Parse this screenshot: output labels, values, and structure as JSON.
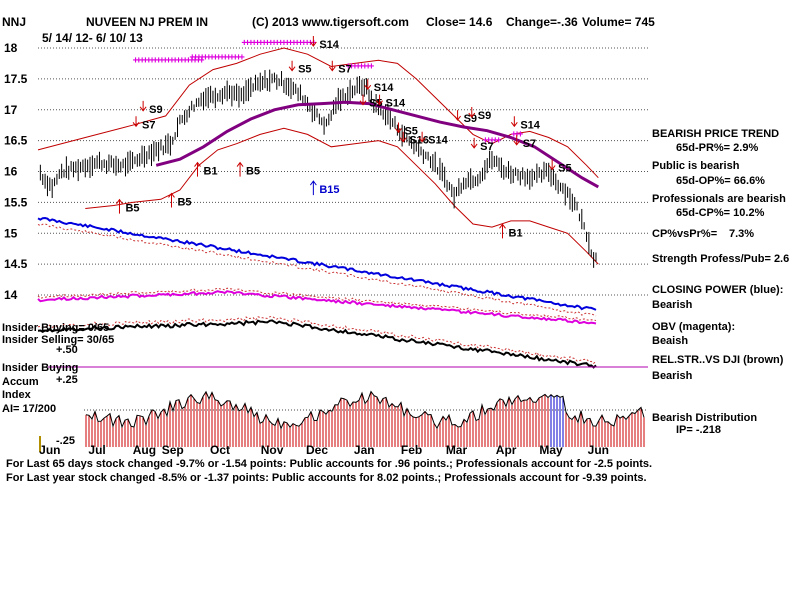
{
  "chart_data": {
    "type": "line",
    "title": "NUVEEN NJ PREM IN",
    "ticker": "NNJ",
    "copyright": "(C) 2013 www.tigersoft.com",
    "close_label": "Close=  14.6",
    "change_label": "Change=-.36",
    "volume_label": "Volume= 745",
    "date_range": "5/ 14/ 12-  6/ 10/ 13",
    "y_axis": {
      "ticks": [
        {
          "value": 18,
          "label": "18"
        },
        {
          "value": 17.5,
          "label": "17.5"
        },
        {
          "value": 17,
          "label": "17"
        },
        {
          "value": 16.5,
          "label": "16.5"
        },
        {
          "value": 16,
          "label": "16"
        },
        {
          "value": 15.5,
          "label": "15.5"
        },
        {
          "value": 15,
          "label": "15"
        },
        {
          "value": 14.5,
          "label": "14.5"
        },
        {
          "value": 14,
          "label": "14"
        }
      ],
      "ylim": [
        13.5,
        18.2
      ]
    },
    "x_axis": {
      "labels": [
        {
          "idx": 0.25,
          "label": "Jun"
        },
        {
          "idx": 1.25,
          "label": "Jul"
        },
        {
          "idx": 2.25,
          "label": "Aug"
        },
        {
          "idx": 2.85,
          "label": "Sep"
        },
        {
          "idx": 3.85,
          "label": "Oct"
        },
        {
          "idx": 4.95,
          "label": "Nov"
        },
        {
          "idx": 5.9,
          "label": "Dec"
        },
        {
          "idx": 6.9,
          "label": "Jan"
        },
        {
          "idx": 7.9,
          "label": "Feb"
        },
        {
          "idx": 8.85,
          "label": "Mar"
        },
        {
          "idx": 9.9,
          "label": "Apr"
        },
        {
          "idx": 10.85,
          "label": "May"
        },
        {
          "idx": 11.85,
          "label": "Jun"
        }
      ],
      "range": [
        0,
        12.9
      ]
    },
    "series": [
      {
        "name": "Price",
        "color": "#000000",
        "values": [
          [
            0,
            16.05
          ],
          [
            0.15,
            15.85
          ],
          [
            0.3,
            15.75
          ],
          [
            0.5,
            16.0
          ],
          [
            0.8,
            16.05
          ],
          [
            1.0,
            16.1
          ],
          [
            1.3,
            16.15
          ],
          [
            1.6,
            16.1
          ],
          [
            1.9,
            16.1
          ],
          [
            2.2,
            16.25
          ],
          [
            2.5,
            16.35
          ],
          [
            2.8,
            16.45
          ],
          [
            3.0,
            16.8
          ],
          [
            3.2,
            17.0
          ],
          [
            3.5,
            17.2
          ],
          [
            3.8,
            17.25
          ],
          [
            4.0,
            17.3
          ],
          [
            4.3,
            17.2
          ],
          [
            4.5,
            17.35
          ],
          [
            4.8,
            17.45
          ],
          [
            5.0,
            17.5
          ],
          [
            5.3,
            17.4
          ],
          [
            5.6,
            17.2
          ],
          [
            5.9,
            16.9
          ],
          [
            6.1,
            16.75
          ],
          [
            6.3,
            17.1
          ],
          [
            6.6,
            17.3
          ],
          [
            6.9,
            17.4
          ],
          [
            7.1,
            17.1
          ],
          [
            7.4,
            16.9
          ],
          [
            7.7,
            16.6
          ],
          [
            8.0,
            16.4
          ],
          [
            8.3,
            16.2
          ],
          [
            8.6,
            15.9
          ],
          [
            8.8,
            15.6
          ],
          [
            9.0,
            15.85
          ],
          [
            9.3,
            15.9
          ],
          [
            9.6,
            16.2
          ],
          [
            9.9,
            16.0
          ],
          [
            10.2,
            15.95
          ],
          [
            10.5,
            15.9
          ],
          [
            10.8,
            16.0
          ],
          [
            11.0,
            15.8
          ],
          [
            11.2,
            15.65
          ],
          [
            11.4,
            15.4
          ],
          [
            11.6,
            15.0
          ],
          [
            11.75,
            14.6
          ],
          [
            11.85,
            14.6
          ]
        ]
      },
      {
        "name": "65-day Moving Average",
        "color": "#800080",
        "values": [
          [
            2.5,
            16.1
          ],
          [
            3.0,
            16.2
          ],
          [
            3.5,
            16.4
          ],
          [
            4.0,
            16.65
          ],
          [
            4.5,
            16.85
          ],
          [
            5.0,
            17.0
          ],
          [
            5.5,
            17.08
          ],
          [
            6.0,
            17.1
          ],
          [
            6.5,
            17.12
          ],
          [
            7.0,
            17.1
          ],
          [
            7.5,
            17.0
          ],
          [
            8.0,
            16.9
          ],
          [
            8.5,
            16.8
          ],
          [
            9.0,
            16.72
          ],
          [
            9.5,
            16.66
          ],
          [
            10.0,
            16.55
          ],
          [
            10.5,
            16.4
          ],
          [
            11.0,
            16.15
          ],
          [
            11.5,
            15.9
          ],
          [
            11.85,
            15.75
          ]
        ]
      },
      {
        "name": "Upper Band",
        "color": "#c00000",
        "values": [
          [
            0,
            16.35
          ],
          [
            1.0,
            16.55
          ],
          [
            2.0,
            16.75
          ],
          [
            2.7,
            16.9
          ],
          [
            3.2,
            17.4
          ],
          [
            3.7,
            17.65
          ],
          [
            4.2,
            17.75
          ],
          [
            4.7,
            17.9
          ],
          [
            5.2,
            18.0
          ],
          [
            5.7,
            17.9
          ],
          [
            6.2,
            17.7
          ],
          [
            6.7,
            17.75
          ],
          [
            7.2,
            17.8
          ],
          [
            7.6,
            17.75
          ],
          [
            8.0,
            17.5
          ],
          [
            8.4,
            17.2
          ],
          [
            8.8,
            16.9
          ],
          [
            9.2,
            16.6
          ],
          [
            9.6,
            16.45
          ],
          [
            10.0,
            16.6
          ],
          [
            10.4,
            16.65
          ],
          [
            10.8,
            16.55
          ],
          [
            11.2,
            16.4
          ],
          [
            11.6,
            16.1
          ],
          [
            11.85,
            15.9
          ]
        ]
      },
      {
        "name": "Lower Band",
        "color": "#c00000",
        "values": [
          [
            1.0,
            15.4
          ],
          [
            1.6,
            15.45
          ],
          [
            2.0,
            15.5
          ],
          [
            2.6,
            15.55
          ],
          [
            3.0,
            15.7
          ],
          [
            3.4,
            16.1
          ],
          [
            3.8,
            16.35
          ],
          [
            4.2,
            16.45
          ],
          [
            4.7,
            16.6
          ],
          [
            5.2,
            16.7
          ],
          [
            5.7,
            16.6
          ],
          [
            6.2,
            16.4
          ],
          [
            6.7,
            16.45
          ],
          [
            7.2,
            16.5
          ],
          [
            7.6,
            16.4
          ],
          [
            8.0,
            16.1
          ],
          [
            8.4,
            15.8
          ],
          [
            8.8,
            15.45
          ],
          [
            9.2,
            15.15
          ],
          [
            9.6,
            15.1
          ],
          [
            10.0,
            15.2
          ],
          [
            10.4,
            15.2
          ],
          [
            10.8,
            15.1
          ],
          [
            11.2,
            15.0
          ],
          [
            11.6,
            14.7
          ],
          [
            11.85,
            14.5
          ]
        ]
      },
      {
        "name": "Closing Power",
        "color": "#0000dd"
      },
      {
        "name": "OBV",
        "color": "#dd00dd"
      },
      {
        "name": "Relative Strength vs DJI",
        "color": "#000000"
      }
    ],
    "signals": [
      {
        "label": "S7",
        "idx": 2.2,
        "value": 16.7,
        "color": "#000000"
      },
      {
        "label": "S9",
        "idx": 2.35,
        "value": 16.95,
        "color": "#000000"
      },
      {
        "label": "B5",
        "idx": 1.85,
        "value": 15.35,
        "color": "#000000"
      },
      {
        "label": "B5",
        "idx": 2.95,
        "value": 15.45,
        "color": "#000000"
      },
      {
        "label": "B1",
        "idx": 3.5,
        "value": 15.95,
        "color": "#000000"
      },
      {
        "label": "B5",
        "idx": 4.4,
        "value": 15.95,
        "color": "#000000"
      },
      {
        "label": "B15",
        "idx": 5.95,
        "value": 15.65,
        "color": "#0000cc"
      },
      {
        "label": "S5",
        "idx": 5.5,
        "value": 17.6,
        "color": "#000000"
      },
      {
        "label": "S14",
        "idx": 5.95,
        "value": 18.0,
        "color": "#000000"
      },
      {
        "label": "S7",
        "idx": 6.35,
        "value": 17.6,
        "color": "#000000"
      },
      {
        "label": "S14",
        "idx": 7.1,
        "value": 17.3,
        "color": "#000000"
      },
      {
        "label": "S5",
        "idx": 7.0,
        "value": 17.05,
        "color": "#000000"
      },
      {
        "label": "S14",
        "idx": 7.35,
        "value": 17.05,
        "color": "#000000"
      },
      {
        "label": "S5",
        "idx": 7.75,
        "value": 16.6,
        "color": "#000000"
      },
      {
        "label": "S16",
        "idx": 7.85,
        "value": 16.45,
        "color": "#000000"
      },
      {
        "label": "S14",
        "idx": 8.25,
        "value": 16.45,
        "color": "#000000"
      },
      {
        "label": "S9",
        "idx": 9.0,
        "value": 16.8,
        "color": "#000000"
      },
      {
        "label": "S9",
        "idx": 9.3,
        "value": 16.85,
        "color": "#000000"
      },
      {
        "label": "S7",
        "idx": 9.35,
        "value": 16.35,
        "color": "#000000"
      },
      {
        "label": "S14",
        "idx": 10.2,
        "value": 16.7,
        "color": "#000000"
      },
      {
        "label": "S7",
        "idx": 10.25,
        "value": 16.4,
        "color": "#000000"
      },
      {
        "label": "S5",
        "idx": 11.0,
        "value": 16.0,
        "color": "#000000"
      },
      {
        "label": "B1",
        "idx": 9.95,
        "value": 14.95,
        "color": "#000000"
      }
    ],
    "indicators": [
      {
        "label": "BEARISH PRICE TREND",
        "value": "65d-PR%= 2.9%"
      },
      {
        "label": "Public is bearish",
        "value": "65d-OP%= 66.6%"
      },
      {
        "label": "Professionals are bearish",
        "value": "65d-CP%= 10.2%"
      },
      {
        "label": "CP%vsPr%=",
        "value": "7.3%"
      },
      {
        "label": "Strength Profess/Pub= 2.6",
        "value": ""
      },
      {
        "label": "CLOSING POWER (blue):",
        "value": "Bearish"
      },
      {
        "label": "OBV (magenta):",
        "value": "Beaish"
      },
      {
        "label": "REL.STR..VS DJI (brown)",
        "value": "Bearish"
      },
      {
        "label": "Bearish Distribution",
        "value": "IP= -.218"
      }
    ],
    "insider": {
      "buying": "Insider Buying= 0/65",
      "selling": "Insider Selling= 30/65",
      "panel_title": "Insider Buying",
      "panel_sub1": "Accum",
      "panel_sub2": "Index",
      "ai": "AI= 17/200",
      "level_p50": "+.50",
      "level_p25": "+.25",
      "level_m25": "-.25"
    },
    "footer": {
      "line1": "For Last 65 days stock changed -9.7% or -1.54 points:  Public accounts for  .96 points.;  Professionals account for -2.5 points.",
      "line2": "For Last year stock changed -8.5% or -1.37 points:  Public accounts for  8.02 points.;  Professionals account for -9.39 points."
    }
  }
}
